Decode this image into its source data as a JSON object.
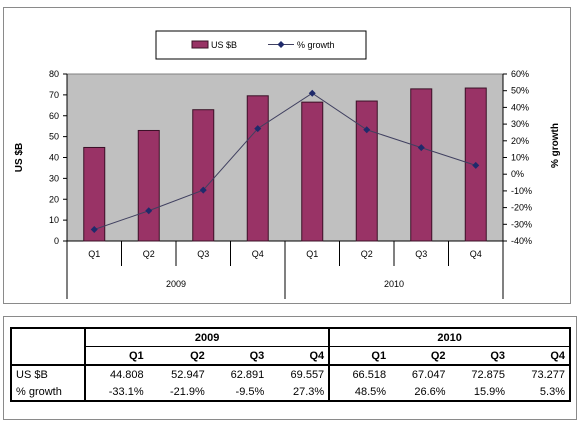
{
  "chart_data": {
    "type": "bar+line",
    "categories": [
      "Q1",
      "Q2",
      "Q3",
      "Q4",
      "Q1",
      "Q2",
      "Q3",
      "Q4"
    ],
    "year_groups": [
      {
        "label": "2009",
        "quarters": 4
      },
      {
        "label": "2010",
        "quarters": 4
      }
    ],
    "series": [
      {
        "name": "US $B",
        "type": "bar",
        "axis": "left",
        "color": "#993366",
        "values": [
          44.808,
          52.947,
          62.891,
          69.557,
          66.518,
          67.047,
          72.875,
          73.277
        ]
      },
      {
        "name": "% growth",
        "type": "line",
        "axis": "right",
        "color": "#1f2a6b",
        "values": [
          -33.1,
          -21.9,
          -9.5,
          27.3,
          48.5,
          26.6,
          15.9,
          5.3
        ]
      }
    ],
    "ylabel": "US $B",
    "y2label": "% growth",
    "ylim": [
      0,
      80
    ],
    "yticks": [
      "0",
      "10",
      "20",
      "30",
      "40",
      "50",
      "60",
      "70",
      "80"
    ],
    "y2lim": [
      -40,
      60
    ],
    "y2ticks": [
      "-40%",
      "-30%",
      "-20%",
      "-10%",
      "0%",
      "10%",
      "20%",
      "30%",
      "40%",
      "50%",
      "60%"
    ],
    "plot_background": "#c0c0c0",
    "legend_position": "top-center",
    "grid": false
  },
  "table": {
    "years": [
      "2009",
      "2010"
    ],
    "quarters": [
      "Q1",
      "Q2",
      "Q3",
      "Q4",
      "Q1",
      "Q2",
      "Q3",
      "Q4"
    ],
    "rows": [
      {
        "label": "US $B",
        "values": [
          "44.808",
          "52.947",
          "62.891",
          "69.557",
          "66.518",
          "67.047",
          "72.875",
          "73.277"
        ]
      },
      {
        "label": "% growth",
        "values": [
          "-33.1%",
          "-21.9%",
          "-9.5%",
          "27.3%",
          "48.5%",
          "26.6%",
          "15.9%",
          "5.3%"
        ]
      }
    ]
  }
}
